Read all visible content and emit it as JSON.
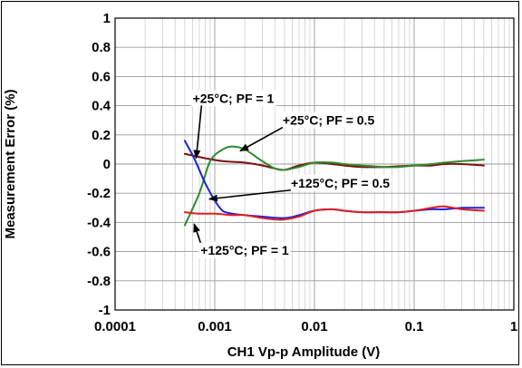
{
  "chart_data": {
    "type": "line",
    "xlabel": "CH1 Vp-p Amplitude (V)",
    "ylabel": "Measurement Error (%)",
    "xscale": "log",
    "xlim": [
      0.0001,
      1
    ],
    "ylim": [
      -1,
      1
    ],
    "grid": true,
    "legend": "none",
    "x_ticks": [
      {
        "value": 0.0001,
        "label": "0.0001"
      },
      {
        "value": 0.001,
        "label": "0.001"
      },
      {
        "value": 0.01,
        "label": "0.01"
      },
      {
        "value": 0.1,
        "label": "0.1"
      },
      {
        "value": 1,
        "label": "1"
      }
    ],
    "y_ticks": [
      {
        "value": 1,
        "label": "1"
      },
      {
        "value": 0.8,
        "label": "0.8"
      },
      {
        "value": 0.6,
        "label": "0.6"
      },
      {
        "value": 0.4,
        "label": "0.4"
      },
      {
        "value": 0.2,
        "label": "0.2"
      },
      {
        "value": 0,
        "label": "0"
      },
      {
        "value": -0.2,
        "label": "-0.2"
      },
      {
        "value": -0.4,
        "label": "-0.4"
      },
      {
        "value": -0.6,
        "label": "-0.6"
      },
      {
        "value": -0.8,
        "label": "-0.8"
      },
      {
        "value": -1,
        "label": "-1"
      }
    ],
    "series": [
      {
        "key": "s25_pf1",
        "color": "#7a1010",
        "x": [
          0.0005,
          0.0008,
          0.0012,
          0.002,
          0.003,
          0.004,
          0.005,
          0.007,
          0.01,
          0.015,
          0.02,
          0.03,
          0.05,
          0.07,
          0.1,
          0.15,
          0.2,
          0.3,
          0.5
        ],
        "y": [
          0.07,
          0.04,
          0.02,
          0.01,
          -0.01,
          -0.03,
          -0.04,
          -0.01,
          0.01,
          0.0,
          -0.01,
          -0.02,
          -0.02,
          -0.015,
          -0.01,
          -0.01,
          0.0,
          0.0,
          -0.01
        ]
      },
      {
        "key": "s25_pf05",
        "color": "#2e8b2e",
        "x": [
          0.0005,
          0.0007,
          0.0009,
          0.0012,
          0.0015,
          0.002,
          0.003,
          0.004,
          0.005,
          0.007,
          0.01,
          0.015,
          0.02,
          0.03,
          0.05,
          0.07,
          0.1,
          0.15,
          0.2,
          0.3,
          0.5
        ],
        "y": [
          -0.42,
          -0.2,
          0.02,
          0.1,
          0.12,
          0.1,
          0.02,
          -0.03,
          -0.04,
          -0.02,
          0.01,
          0.01,
          0.0,
          -0.01,
          -0.02,
          -0.02,
          -0.01,
          0.0,
          0.01,
          0.02,
          0.03
        ]
      },
      {
        "key": "s125_pf05",
        "color": "#2020dd",
        "x": [
          0.0005,
          0.0006,
          0.0007,
          0.0008,
          0.001,
          0.0012,
          0.0015,
          0.002,
          0.003,
          0.005,
          0.007,
          0.01,
          0.015,
          0.02,
          0.03,
          0.05,
          0.07,
          0.1,
          0.15,
          0.2,
          0.3,
          0.5
        ],
        "y": [
          0.16,
          0.06,
          -0.04,
          -0.13,
          -0.25,
          -0.32,
          -0.34,
          -0.35,
          -0.36,
          -0.37,
          -0.35,
          -0.32,
          -0.31,
          -0.32,
          -0.33,
          -0.33,
          -0.33,
          -0.32,
          -0.31,
          -0.31,
          -0.3,
          -0.3
        ]
      },
      {
        "key": "s125_pf1",
        "color": "#dd2020",
        "x": [
          0.0005,
          0.0007,
          0.001,
          0.0015,
          0.002,
          0.003,
          0.004,
          0.005,
          0.007,
          0.01,
          0.015,
          0.02,
          0.03,
          0.05,
          0.07,
          0.1,
          0.15,
          0.2,
          0.3,
          0.5
        ],
        "y": [
          -0.33,
          -0.34,
          -0.34,
          -0.35,
          -0.35,
          -0.37,
          -0.38,
          -0.38,
          -0.36,
          -0.32,
          -0.31,
          -0.32,
          -0.33,
          -0.33,
          -0.33,
          -0.32,
          -0.3,
          -0.29,
          -0.31,
          -0.32
        ]
      }
    ],
    "annotations": [
      {
        "key": "a25_pf1",
        "text": "+25°C; PF = 1",
        "label_at": [
          0.0006,
          0.42
        ],
        "arrow_to": [
          0.00065,
          0.04
        ]
      },
      {
        "key": "a25_pf05",
        "text": "+25°C; PF = 0.5",
        "label_at": [
          0.0048,
          0.27
        ],
        "arrow_to": [
          0.0018,
          0.09
        ]
      },
      {
        "key": "a125_pf05",
        "text": "+125°C; PF = 0.5",
        "label_at": [
          0.0058,
          -0.16
        ],
        "arrow_to": [
          0.00088,
          -0.24
        ]
      },
      {
        "key": "a125_pf1",
        "text": "+125°C; PF = 1",
        "label_at": [
          0.00072,
          -0.62
        ],
        "arrow_to": [
          0.00062,
          -0.41
        ]
      }
    ]
  }
}
